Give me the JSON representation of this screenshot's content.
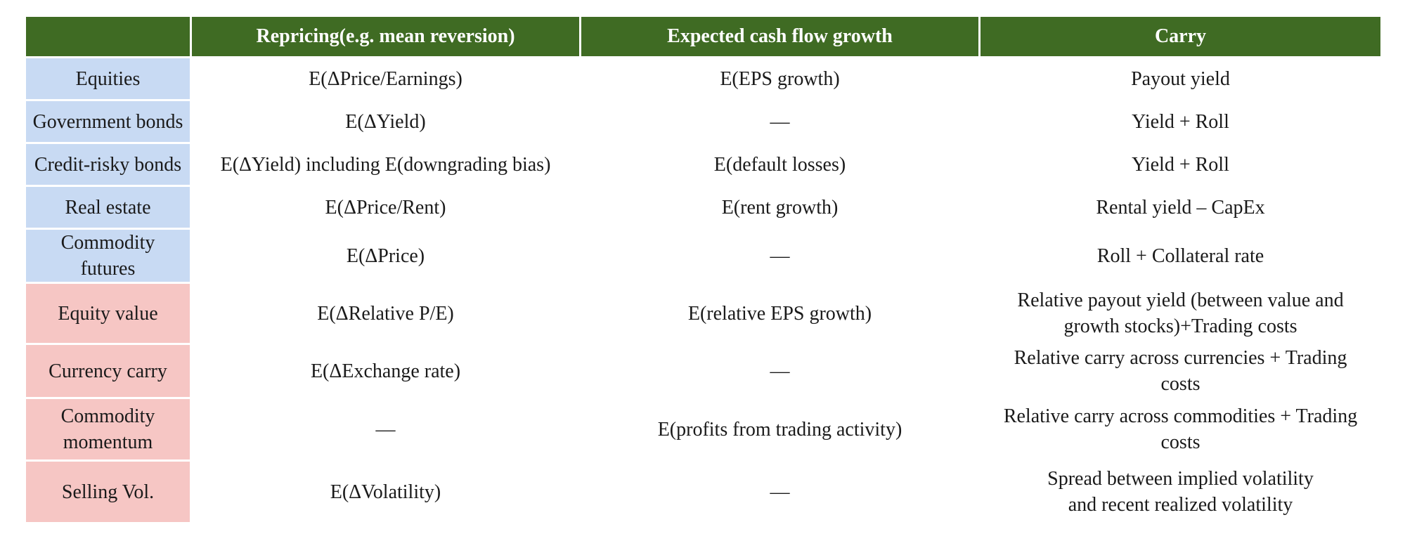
{
  "table": {
    "headers": [
      "",
      "Repricing(e.g. mean reversion)",
      "Expected cash flow growth",
      "Carry"
    ],
    "rows": [
      {
        "label": "Equities",
        "group": "asset",
        "repricing": "E(ΔPrice/Earnings)",
        "cash_flow": "E(EPS growth)",
        "carry_lines": [
          "Payout yield"
        ]
      },
      {
        "label": "Government bonds",
        "group": "asset",
        "repricing": "E(ΔYield)",
        "cash_flow": "—",
        "carry_lines": [
          "Yield + Roll"
        ]
      },
      {
        "label": "Credit-risky bonds",
        "group": "asset",
        "repricing": "E(ΔYield) including E(downgrading bias)",
        "cash_flow": "E(default losses)",
        "carry_lines": [
          "Yield + Roll"
        ]
      },
      {
        "label": "Real estate",
        "group": "asset",
        "repricing": "E(ΔPrice/Rent)",
        "cash_flow": "E(rent growth)",
        "carry_lines": [
          "Rental yield – CapEx"
        ]
      },
      {
        "label_lines": [
          "Commodity",
          "futures"
        ],
        "group": "asset",
        "repricing": "E(ΔPrice)",
        "cash_flow": "—",
        "carry_lines": [
          "Roll + Collateral rate"
        ]
      },
      {
        "label": "Equity value",
        "group": "strategy",
        "repricing": "E(ΔRelative P/E)",
        "cash_flow": "E(relative EPS growth)",
        "carry_lines": [
          "Relative payout yield (between value and",
          "growth stocks)+Trading costs"
        ]
      },
      {
        "label": "Currency carry",
        "group": "strategy",
        "repricing": "E(ΔExchange rate)",
        "cash_flow": "—",
        "carry_lines": [
          "Relative carry across currencies + Trading",
          "costs"
        ]
      },
      {
        "label_lines": [
          "Commodity",
          "momentum"
        ],
        "group": "strategy",
        "repricing": "—",
        "cash_flow": "E(profits from trading activity)",
        "carry_lines": [
          "Relative carry across commodities + Trading",
          "costs"
        ]
      },
      {
        "label": "Selling Vol.",
        "group": "strategy",
        "repricing": "E(ΔVolatility)",
        "cash_flow": "—",
        "carry_lines": [
          "Spread between implied volatility",
          "and recent realized volatility"
        ]
      }
    ],
    "colors": {
      "header_bg": "#3f6b23",
      "header_text": "#ffffff",
      "asset_row_bg": "#c8daf3",
      "strategy_row_bg": "#f6c6c4"
    }
  }
}
